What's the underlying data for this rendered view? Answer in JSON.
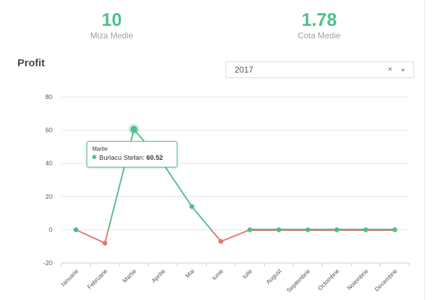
{
  "stats": {
    "miza": {
      "value": "10",
      "label": "Miza Medie"
    },
    "cota": {
      "value": "1.78",
      "label": "Cota Medie"
    }
  },
  "profit": {
    "title": "Profit",
    "year_select": {
      "value": "2017",
      "clear_icon": "×",
      "caret": "chevron-down-icon"
    }
  },
  "colors": {
    "positive": "#4ec08a",
    "negative": "#e8786e",
    "grid": "#e6e6e6",
    "axis": "#cccccc"
  },
  "tooltip": {
    "month": "Martie",
    "series": "Burlacu Stefan:",
    "value": "60.52"
  },
  "chart_data": {
    "type": "line",
    "categories": [
      "Ianuarie",
      "Februarie",
      "Martie",
      "Aprilie",
      "Mai",
      "Iunie",
      "Iulie",
      "August",
      "Septembrie",
      "Octombrie",
      "Noiembrie",
      "Decembrie"
    ],
    "series": [
      {
        "name": "Burlacu Stefan",
        "values": [
          0,
          -8,
          60.52,
          40,
          14,
          -7,
          0,
          0,
          0,
          0,
          0,
          0
        ]
      }
    ],
    "yticks": [
      80,
      60,
      40,
      20,
      0,
      -20
    ],
    "ylim": [
      -20,
      80
    ],
    "grid": true
  }
}
